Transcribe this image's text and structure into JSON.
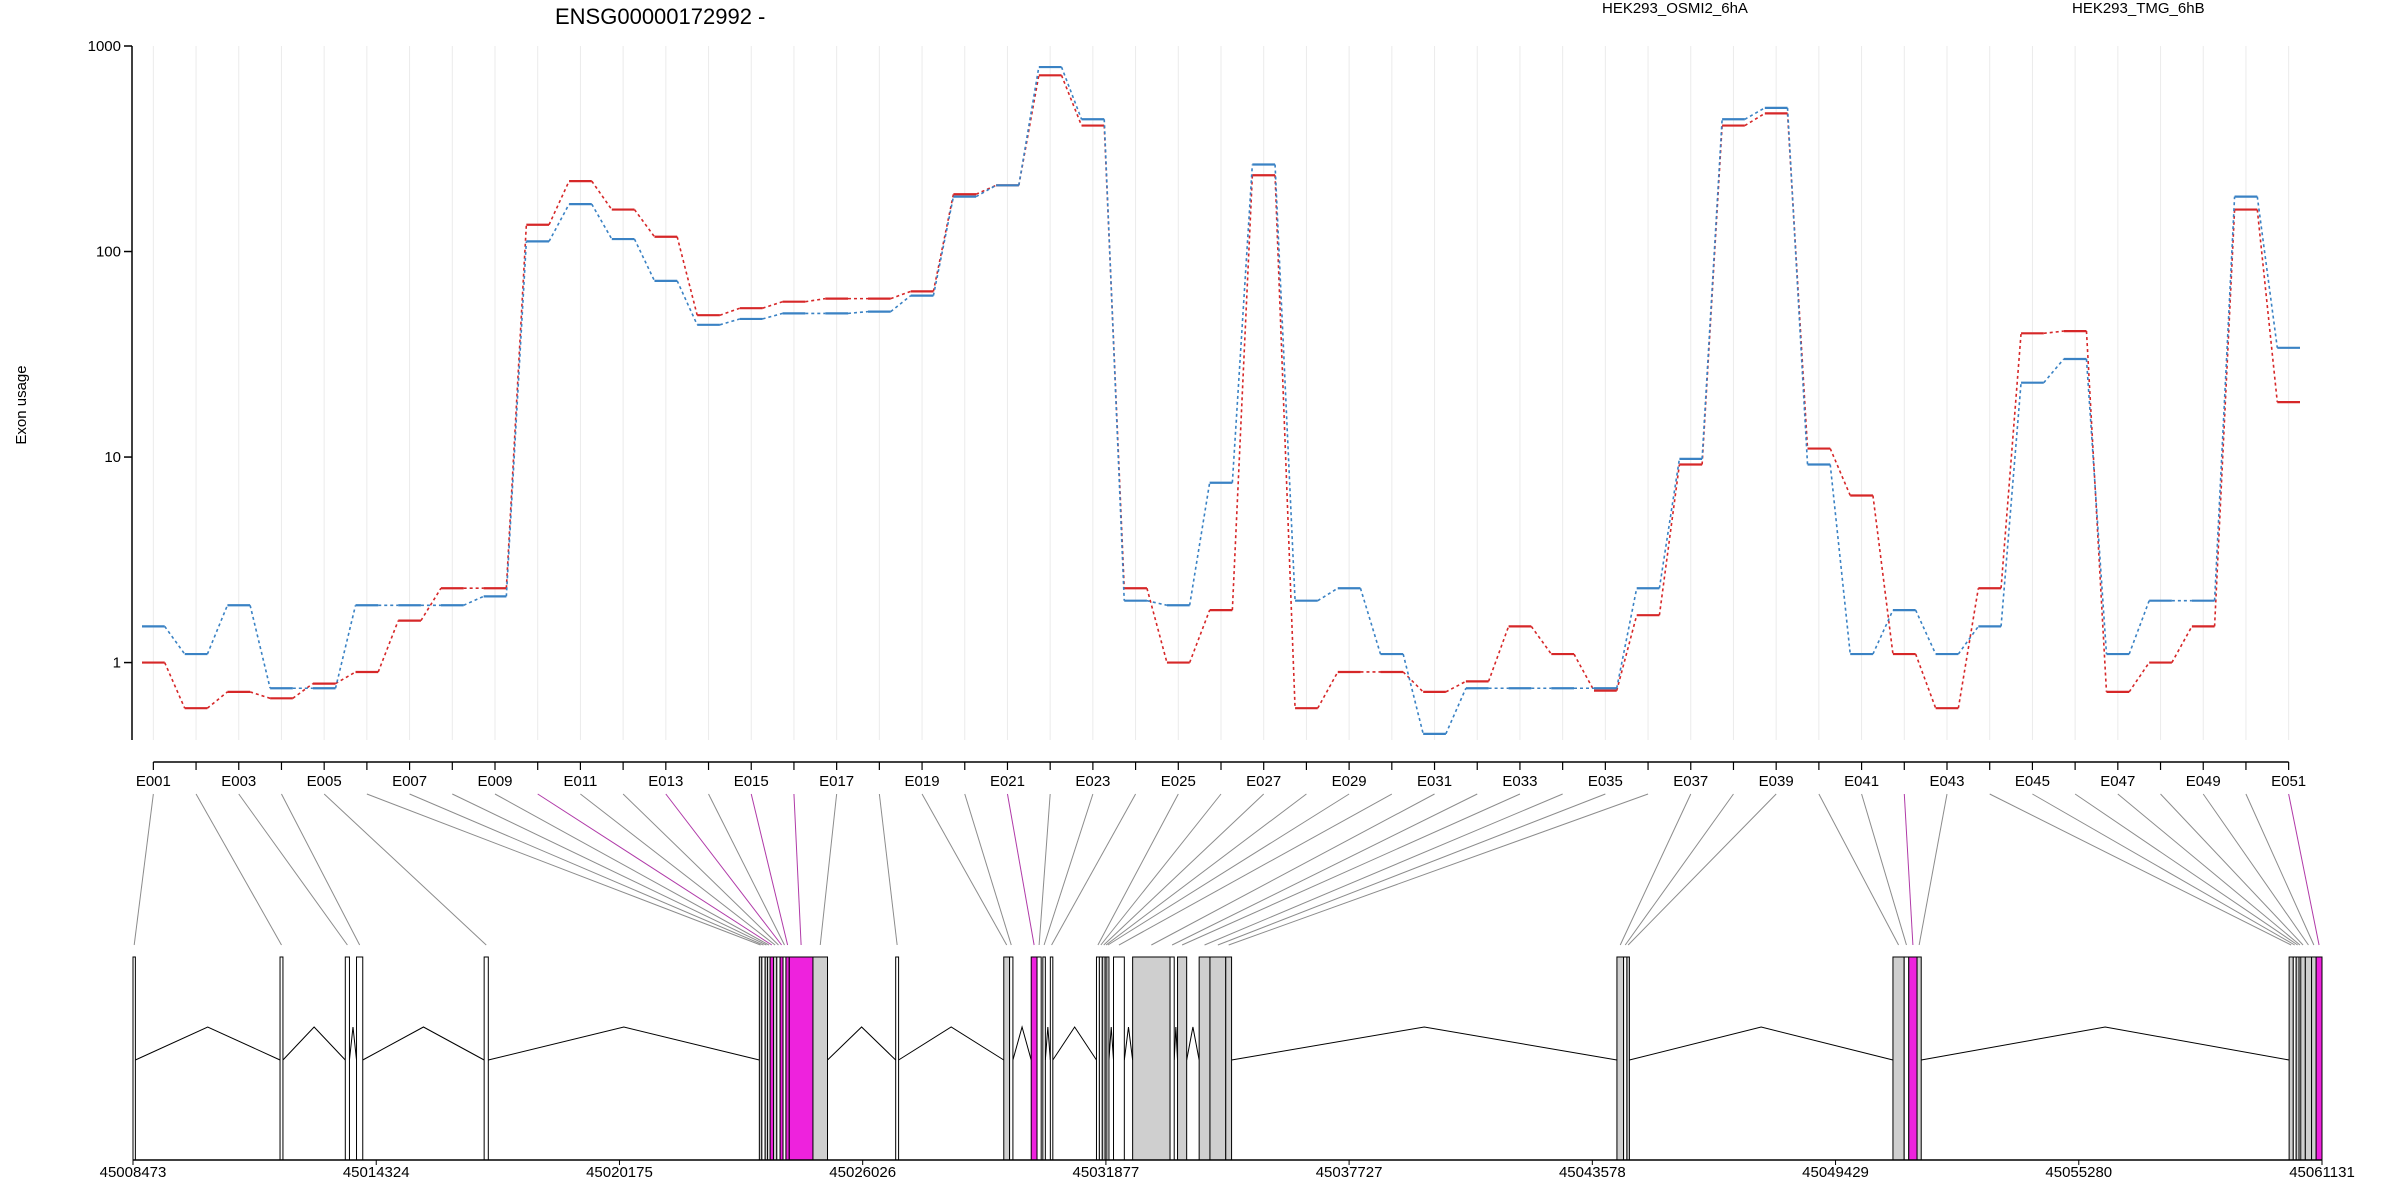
{
  "chart_data": {
    "type": "line",
    "title": "ENSG00000172992 -",
    "ylabel": "Exon usage",
    "yscale": "log",
    "ylim": [
      0.42,
      1000
    ],
    "yticks": [
      "1",
      "10",
      "100",
      "1000"
    ],
    "grid": "vertical, light",
    "legend_placement": "top-right",
    "x": [
      "E001",
      "E002",
      "E003",
      "E004",
      "E005",
      "E006",
      "E007",
      "E008",
      "E009",
      "E010",
      "E011",
      "E012",
      "E013",
      "E014",
      "E015",
      "E016",
      "E017",
      "E018",
      "E019",
      "E020",
      "E021",
      "E022",
      "E023",
      "E024",
      "E025",
      "E026",
      "E027",
      "E028",
      "E029",
      "E030",
      "E031",
      "E032",
      "E033",
      "E034",
      "E035",
      "E036",
      "E037",
      "E038",
      "E039",
      "E040",
      "E041",
      "E042",
      "E043",
      "E044",
      "E045",
      "E046",
      "E047",
      "E048",
      "E049",
      "E050",
      "E051"
    ],
    "x_tick_labels": [
      "E001",
      "E003",
      "E005",
      "E007",
      "E009",
      "E011",
      "E013",
      "E015",
      "E017",
      "E019",
      "E021",
      "E023",
      "E025",
      "E027",
      "E029",
      "E031",
      "E033",
      "E035",
      "E037",
      "E039",
      "E041",
      "E043",
      "E045",
      "E047",
      "E049",
      "E051"
    ],
    "series": [
      {
        "name": "HEK293_OSMI2_6hA",
        "color": "#d62728",
        "values": [
          1.0,
          0.6,
          0.72,
          0.67,
          0.79,
          0.9,
          1.6,
          2.3,
          2.3,
          135,
          220,
          160,
          118,
          49,
          53,
          57,
          59,
          59,
          64,
          190,
          210,
          720,
          410,
          2.3,
          1.0,
          1.8,
          235,
          0.6,
          0.9,
          0.9,
          0.72,
          0.81,
          1.5,
          1.1,
          0.73,
          1.7,
          9.2,
          410,
          470,
          11,
          6.5,
          1.1,
          0.6,
          2.3,
          40,
          41,
          0.72,
          1.0,
          1.5,
          160,
          18.5
        ]
      },
      {
        "name": "HEK293_TMG_6hB",
        "color": "#3a82c4",
        "values": [
          1.5,
          1.1,
          1.9,
          0.75,
          0.75,
          1.9,
          1.9,
          1.9,
          2.1,
          112,
          170,
          115,
          72,
          44,
          47,
          50,
          50,
          51,
          61,
          185,
          210,
          790,
          440,
          2.0,
          1.9,
          7.5,
          265,
          2.0,
          2.3,
          1.1,
          0.45,
          0.75,
          0.75,
          0.75,
          0.75,
          2.3,
          9.8,
          440,
          500,
          9.2,
          1.1,
          1.8,
          1.1,
          1.5,
          23,
          30,
          1.1,
          2.0,
          2.0,
          185,
          34
        ]
      }
    ],
    "genomic_axis": {
      "tick_labels": [
        "45008473",
        "45014324",
        "45020175",
        "45026026",
        "45031877",
        "45037727",
        "45043578",
        "45049429",
        "45055280",
        "45061131"
      ],
      "exon_blocks": [
        {
          "id": "E001",
          "start": 45008473,
          "end": 45008530,
          "fill": "white"
        },
        {
          "id": "E002",
          "start": 45012010,
          "end": 45012080,
          "fill": "white"
        },
        {
          "id": "E003",
          "start": 45013580,
          "end": 45013680,
          "fill": "white"
        },
        {
          "id": "E004",
          "start": 45013850,
          "end": 45014000,
          "fill": "white"
        },
        {
          "id": "E005",
          "start": 45016920,
          "end": 45017020,
          "fill": "white"
        },
        {
          "id": "E006",
          "start": 45023540,
          "end": 45023600,
          "fill": "grey"
        },
        {
          "id": "E007",
          "start": 45023600,
          "end": 45023680,
          "fill": "white"
        },
        {
          "id": "E008",
          "start": 45023680,
          "end": 45023740,
          "fill": "grey"
        },
        {
          "id": "E009",
          "start": 45023740,
          "end": 45023800,
          "fill": "white"
        },
        {
          "id": "E010",
          "start": 45023800,
          "end": 45023880,
          "fill": "magenta"
        },
        {
          "id": "E011",
          "start": 45023880,
          "end": 45023960,
          "fill": "grey"
        },
        {
          "id": "E012",
          "start": 45023960,
          "end": 45024040,
          "fill": "white"
        },
        {
          "id": "E013",
          "start": 45024040,
          "end": 45024110,
          "fill": "magenta"
        },
        {
          "id": "E014",
          "start": 45024110,
          "end": 45024180,
          "fill": "white"
        },
        {
          "id": "E015",
          "start": 45024180,
          "end": 45024260,
          "fill": "magenta"
        },
        {
          "id": "E016",
          "start": 45024260,
          "end": 45024830,
          "fill": "magenta"
        },
        {
          "id": "E017",
          "start": 45024830,
          "end": 45025180,
          "fill": "grey"
        },
        {
          "id": "E018",
          "start": 45026820,
          "end": 45026890,
          "fill": "white"
        },
        {
          "id": "E019",
          "start": 45029420,
          "end": 45029560,
          "fill": "grey"
        },
        {
          "id": "E020",
          "start": 45029560,
          "end": 45029640,
          "fill": "white"
        },
        {
          "id": "E021",
          "start": 45030080,
          "end": 45030220,
          "fill": "magenta"
        },
        {
          "id": "E022",
          "start": 45030220,
          "end": 45030320,
          "fill": "white"
        },
        {
          "id": "E023",
          "start": 45030360,
          "end": 45030420,
          "fill": "white"
        },
        {
          "id": "E024",
          "start": 45030540,
          "end": 45030600,
          "fill": "white"
        },
        {
          "id": "E025",
          "start": 45031650,
          "end": 45031720,
          "fill": "white"
        },
        {
          "id": "E026",
          "start": 45031720,
          "end": 45031790,
          "fill": "white"
        },
        {
          "id": "E027",
          "start": 45031790,
          "end": 45031860,
          "fill": "grey"
        },
        {
          "id": "E028",
          "start": 45031860,
          "end": 45031900,
          "fill": "white"
        },
        {
          "id": "E029",
          "start": 45031900,
          "end": 45031950,
          "fill": "white"
        },
        {
          "id": "E030",
          "start": 45032060,
          "end": 45032320,
          "fill": "white"
        },
        {
          "id": "E031",
          "start": 45032520,
          "end": 45033420,
          "fill": "grey"
        },
        {
          "id": "E032",
          "start": 45033420,
          "end": 45033520,
          "fill": "white"
        },
        {
          "id": "E033",
          "start": 45033600,
          "end": 45033820,
          "fill": "grey"
        },
        {
          "id": "E034",
          "start": 45034120,
          "end": 45034380,
          "fill": "grey"
        },
        {
          "id": "E035",
          "start": 45034380,
          "end": 45034760,
          "fill": "grey"
        },
        {
          "id": "E036",
          "start": 45034760,
          "end": 45034900,
          "fill": "grey"
        },
        {
          "id": "E037",
          "start": 45044170,
          "end": 45044330,
          "fill": "grey"
        },
        {
          "id": "E038",
          "start": 45044330,
          "end": 45044410,
          "fill": "white"
        },
        {
          "id": "E039",
          "start": 45044410,
          "end": 45044470,
          "fill": "grey"
        },
        {
          "id": "E040",
          "start": 45050810,
          "end": 45051080,
          "fill": "grey"
        },
        {
          "id": "E041",
          "start": 45051080,
          "end": 45051190,
          "fill": "white"
        },
        {
          "id": "E042",
          "start": 45051190,
          "end": 45051390,
          "fill": "magenta"
        },
        {
          "id": "E043",
          "start": 45051390,
          "end": 45051490,
          "fill": "grey"
        },
        {
          "id": "E044",
          "start": 45060340,
          "end": 45060440,
          "fill": "grey"
        },
        {
          "id": "E045",
          "start": 45060440,
          "end": 45060510,
          "fill": "white"
        },
        {
          "id": "E046",
          "start": 45060510,
          "end": 45060580,
          "fill": "grey"
        },
        {
          "id": "E047",
          "start": 45060580,
          "end": 45060620,
          "fill": "white"
        },
        {
          "id": "E048",
          "start": 45060620,
          "end": 45060730,
          "fill": "grey"
        },
        {
          "id": "E049",
          "start": 45060730,
          "end": 45060880,
          "fill": "grey"
        },
        {
          "id": "E050",
          "start": 45060880,
          "end": 45060990,
          "fill": "grey"
        },
        {
          "id": "E051",
          "start": 45060990,
          "end": 45061131,
          "fill": "magenta"
        }
      ]
    }
  }
}
